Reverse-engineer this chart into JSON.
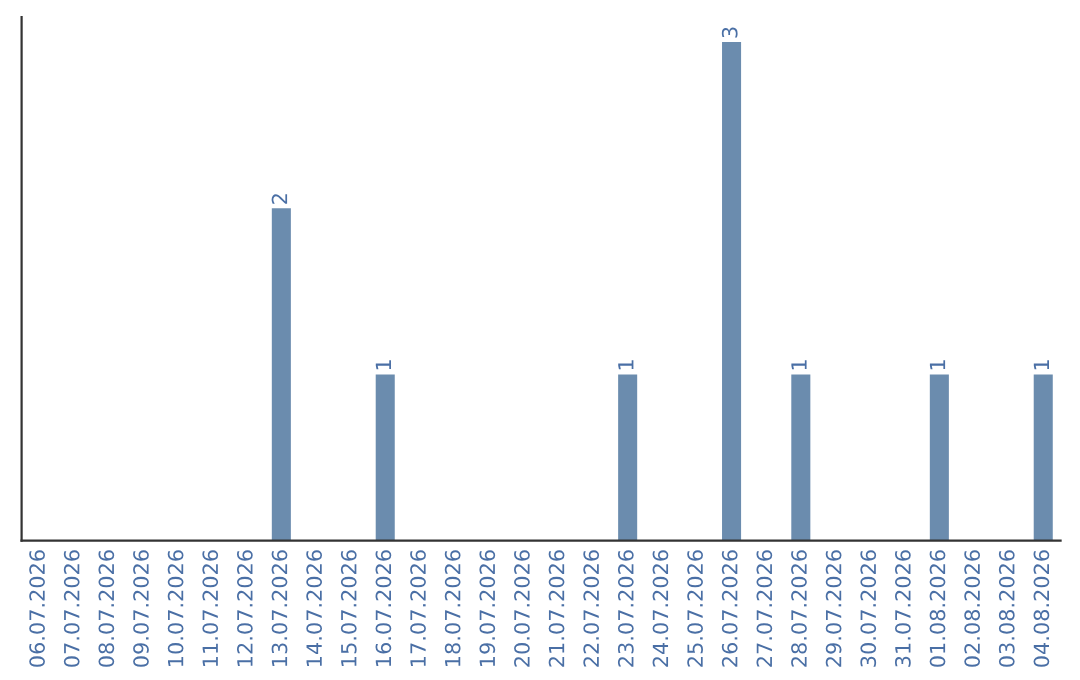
{
  "chart_data": {
    "type": "bar",
    "categories": [
      "06.07.2026",
      "07.07.2026",
      "08.07.2026",
      "09.07.2026",
      "10.07.2026",
      "11.07.2026",
      "12.07.2026",
      "13.07.2026",
      "14.07.2026",
      "15.07.2026",
      "16.07.2026",
      "17.07.2026",
      "18.07.2026",
      "19.07.2026",
      "20.07.2026",
      "21.07.2026",
      "22.07.2026",
      "23.07.2026",
      "24.07.2026",
      "25.07.2026",
      "26.07.2026",
      "27.07.2026",
      "28.07.2026",
      "29.07.2026",
      "30.07.2026",
      "31.07.2026",
      "01.08.2026",
      "02.08.2026",
      "03.08.2026",
      "04.08.2026"
    ],
    "values": [
      0,
      0,
      0,
      0,
      0,
      0,
      0,
      2,
      0,
      0,
      1,
      0,
      0,
      0,
      0,
      0,
      0,
      1,
      0,
      0,
      3,
      0,
      1,
      0,
      0,
      0,
      1,
      0,
      0,
      1
    ],
    "value_labels": [
      null,
      null,
      null,
      null,
      null,
      null,
      null,
      "2",
      null,
      null,
      "1",
      null,
      null,
      null,
      null,
      null,
      null,
      "1",
      null,
      null,
      "3",
      null,
      "1",
      null,
      null,
      null,
      "1",
      null,
      null,
      "1"
    ],
    "color": "#6b8cae",
    "tick_labels": "x",
    "grid": false,
    "legend": false
  }
}
